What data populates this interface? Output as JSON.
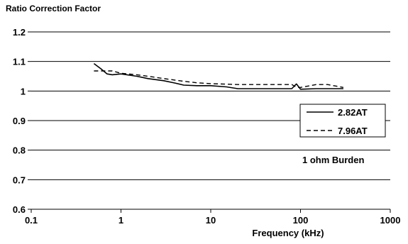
{
  "chart_data": {
    "type": "line",
    "title": "Ratio Correction Factor",
    "xlabel": "Frequency (kHz)",
    "ylabel": "",
    "xscale": "log",
    "xlim": [
      0.1,
      1000
    ],
    "ylim": [
      0.6,
      1.2
    ],
    "xticks": [
      "0.1",
      "1",
      "10",
      "100",
      "1000"
    ],
    "yticks": [
      "0.6",
      "0.7",
      "0.8",
      "0.9",
      "1",
      "1.1",
      "1.2"
    ],
    "grid": "horizontal",
    "legend_position": "right",
    "annotation": "1 ohm Burden",
    "series": [
      {
        "name": "2.82AT",
        "style": "solid",
        "x": [
          0.5,
          0.6,
          0.7,
          0.8,
          1,
          1.5,
          2,
          3,
          4,
          5,
          7,
          10,
          15,
          20,
          30,
          50,
          80,
          90,
          100,
          150,
          200,
          300
        ],
        "y": [
          1.093,
          1.075,
          1.058,
          1.055,
          1.058,
          1.05,
          1.042,
          1.035,
          1.027,
          1.02,
          1.018,
          1.018,
          1.014,
          1.008,
          1.008,
          1.008,
          1.008,
          1.024,
          1.006,
          1.008,
          1.008,
          1.008
        ]
      },
      {
        "name": "7.96AT",
        "style": "dashed",
        "x": [
          0.5,
          0.6,
          0.7,
          0.8,
          1,
          1.5,
          2,
          3,
          5,
          7,
          10,
          20,
          50,
          80,
          90,
          100,
          150,
          200,
          300
        ],
        "y": [
          1.068,
          1.068,
          1.068,
          1.068,
          1.06,
          1.055,
          1.05,
          1.042,
          1.033,
          1.028,
          1.025,
          1.022,
          1.022,
          1.022,
          1.013,
          1.012,
          1.022,
          1.022,
          1.012
        ]
      }
    ]
  }
}
